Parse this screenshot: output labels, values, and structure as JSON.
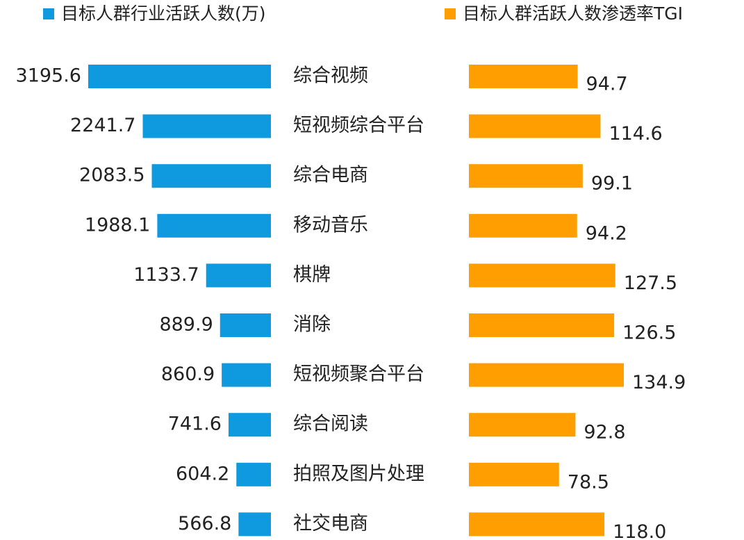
{
  "chart_data": {
    "type": "butterfly",
    "categories": [
      "综合视频",
      "短视频综合平台",
      "综合电商",
      "移动音乐",
      "棋牌",
      "消除",
      "短视频聚合平台",
      "综合阅读",
      "拍照及图片处理",
      "社交电商"
    ],
    "series": [
      {
        "name": "目标人群行业活跃人数(万)",
        "color": "#0f9ae0",
        "values": [
          3195.6,
          2241.7,
          2083.5,
          1988.1,
          1133.7,
          889.9,
          860.9,
          741.6,
          604.2,
          566.8
        ],
        "value_labels": [
          "3195.6",
          "2241.7",
          "2083.5",
          "1988.1",
          "1133.7",
          "889.9",
          "860.9",
          "741.6",
          "604.2",
          "566.8"
        ]
      },
      {
        "name": "目标人群活跃人数渗透率TGI",
        "color": "#ff9e00",
        "values": [
          94.7,
          114.6,
          99.1,
          94.2,
          127.5,
          126.5,
          134.9,
          92.8,
          78.5,
          118.0
        ],
        "value_labels": [
          "94.7",
          "114.6",
          "99.1",
          "94.2",
          "127.5",
          "126.5",
          "134.9",
          "92.8",
          "78.5",
          "118.0"
        ]
      }
    ]
  }
}
